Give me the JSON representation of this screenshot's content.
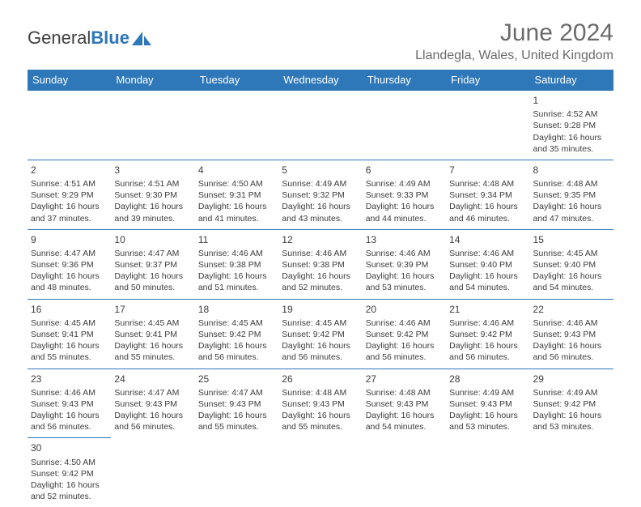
{
  "logo": {
    "text1": "General",
    "text2": "Blue",
    "sail_color": "#2e77b8"
  },
  "title": "June 2024",
  "location": "Llandegla, Wales, United Kingdom",
  "colors": {
    "header_bg": "#2e77b8",
    "header_fg": "#ffffff",
    "rule": "#2e77b8",
    "text": "#3c3c3c",
    "title_text": "#6a6a6a"
  },
  "weekdays": [
    "Sunday",
    "Monday",
    "Tuesday",
    "Wednesday",
    "Thursday",
    "Friday",
    "Saturday"
  ],
  "weeks": [
    [
      null,
      null,
      null,
      null,
      null,
      null,
      {
        "d": "1",
        "sr": "Sunrise: 4:52 AM",
        "ss": "Sunset: 9:28 PM",
        "dl1": "Daylight: 16 hours",
        "dl2": "and 35 minutes."
      }
    ],
    [
      {
        "d": "2",
        "sr": "Sunrise: 4:51 AM",
        "ss": "Sunset: 9:29 PM",
        "dl1": "Daylight: 16 hours",
        "dl2": "and 37 minutes."
      },
      {
        "d": "3",
        "sr": "Sunrise: 4:51 AM",
        "ss": "Sunset: 9:30 PM",
        "dl1": "Daylight: 16 hours",
        "dl2": "and 39 minutes."
      },
      {
        "d": "4",
        "sr": "Sunrise: 4:50 AM",
        "ss": "Sunset: 9:31 PM",
        "dl1": "Daylight: 16 hours",
        "dl2": "and 41 minutes."
      },
      {
        "d": "5",
        "sr": "Sunrise: 4:49 AM",
        "ss": "Sunset: 9:32 PM",
        "dl1": "Daylight: 16 hours",
        "dl2": "and 43 minutes."
      },
      {
        "d": "6",
        "sr": "Sunrise: 4:49 AM",
        "ss": "Sunset: 9:33 PM",
        "dl1": "Daylight: 16 hours",
        "dl2": "and 44 minutes."
      },
      {
        "d": "7",
        "sr": "Sunrise: 4:48 AM",
        "ss": "Sunset: 9:34 PM",
        "dl1": "Daylight: 16 hours",
        "dl2": "and 46 minutes."
      },
      {
        "d": "8",
        "sr": "Sunrise: 4:48 AM",
        "ss": "Sunset: 9:35 PM",
        "dl1": "Daylight: 16 hours",
        "dl2": "and 47 minutes."
      }
    ],
    [
      {
        "d": "9",
        "sr": "Sunrise: 4:47 AM",
        "ss": "Sunset: 9:36 PM",
        "dl1": "Daylight: 16 hours",
        "dl2": "and 48 minutes."
      },
      {
        "d": "10",
        "sr": "Sunrise: 4:47 AM",
        "ss": "Sunset: 9:37 PM",
        "dl1": "Daylight: 16 hours",
        "dl2": "and 50 minutes."
      },
      {
        "d": "11",
        "sr": "Sunrise: 4:46 AM",
        "ss": "Sunset: 9:38 PM",
        "dl1": "Daylight: 16 hours",
        "dl2": "and 51 minutes."
      },
      {
        "d": "12",
        "sr": "Sunrise: 4:46 AM",
        "ss": "Sunset: 9:38 PM",
        "dl1": "Daylight: 16 hours",
        "dl2": "and 52 minutes."
      },
      {
        "d": "13",
        "sr": "Sunrise: 4:46 AM",
        "ss": "Sunset: 9:39 PM",
        "dl1": "Daylight: 16 hours",
        "dl2": "and 53 minutes."
      },
      {
        "d": "14",
        "sr": "Sunrise: 4:46 AM",
        "ss": "Sunset: 9:40 PM",
        "dl1": "Daylight: 16 hours",
        "dl2": "and 54 minutes."
      },
      {
        "d": "15",
        "sr": "Sunrise: 4:45 AM",
        "ss": "Sunset: 9:40 PM",
        "dl1": "Daylight: 16 hours",
        "dl2": "and 54 minutes."
      }
    ],
    [
      {
        "d": "16",
        "sr": "Sunrise: 4:45 AM",
        "ss": "Sunset: 9:41 PM",
        "dl1": "Daylight: 16 hours",
        "dl2": "and 55 minutes."
      },
      {
        "d": "17",
        "sr": "Sunrise: 4:45 AM",
        "ss": "Sunset: 9:41 PM",
        "dl1": "Daylight: 16 hours",
        "dl2": "and 55 minutes."
      },
      {
        "d": "18",
        "sr": "Sunrise: 4:45 AM",
        "ss": "Sunset: 9:42 PM",
        "dl1": "Daylight: 16 hours",
        "dl2": "and 56 minutes."
      },
      {
        "d": "19",
        "sr": "Sunrise: 4:45 AM",
        "ss": "Sunset: 9:42 PM",
        "dl1": "Daylight: 16 hours",
        "dl2": "and 56 minutes."
      },
      {
        "d": "20",
        "sr": "Sunrise: 4:46 AM",
        "ss": "Sunset: 9:42 PM",
        "dl1": "Daylight: 16 hours",
        "dl2": "and 56 minutes."
      },
      {
        "d": "21",
        "sr": "Sunrise: 4:46 AM",
        "ss": "Sunset: 9:42 PM",
        "dl1": "Daylight: 16 hours",
        "dl2": "and 56 minutes."
      },
      {
        "d": "22",
        "sr": "Sunrise: 4:46 AM",
        "ss": "Sunset: 9:43 PM",
        "dl1": "Daylight: 16 hours",
        "dl2": "and 56 minutes."
      }
    ],
    [
      {
        "d": "23",
        "sr": "Sunrise: 4:46 AM",
        "ss": "Sunset: 9:43 PM",
        "dl1": "Daylight: 16 hours",
        "dl2": "and 56 minutes."
      },
      {
        "d": "24",
        "sr": "Sunrise: 4:47 AM",
        "ss": "Sunset: 9:43 PM",
        "dl1": "Daylight: 16 hours",
        "dl2": "and 56 minutes."
      },
      {
        "d": "25",
        "sr": "Sunrise: 4:47 AM",
        "ss": "Sunset: 9:43 PM",
        "dl1": "Daylight: 16 hours",
        "dl2": "and 55 minutes."
      },
      {
        "d": "26",
        "sr": "Sunrise: 4:48 AM",
        "ss": "Sunset: 9:43 PM",
        "dl1": "Daylight: 16 hours",
        "dl2": "and 55 minutes."
      },
      {
        "d": "27",
        "sr": "Sunrise: 4:48 AM",
        "ss": "Sunset: 9:43 PM",
        "dl1": "Daylight: 16 hours",
        "dl2": "and 54 minutes."
      },
      {
        "d": "28",
        "sr": "Sunrise: 4:49 AM",
        "ss": "Sunset: 9:43 PM",
        "dl1": "Daylight: 16 hours",
        "dl2": "and 53 minutes."
      },
      {
        "d": "29",
        "sr": "Sunrise: 4:49 AM",
        "ss": "Sunset: 9:42 PM",
        "dl1": "Daylight: 16 hours",
        "dl2": "and 53 minutes."
      }
    ],
    [
      {
        "d": "30",
        "sr": "Sunrise: 4:50 AM",
        "ss": "Sunset: 9:42 PM",
        "dl1": "Daylight: 16 hours",
        "dl2": "and 52 minutes."
      },
      null,
      null,
      null,
      null,
      null,
      null
    ]
  ]
}
